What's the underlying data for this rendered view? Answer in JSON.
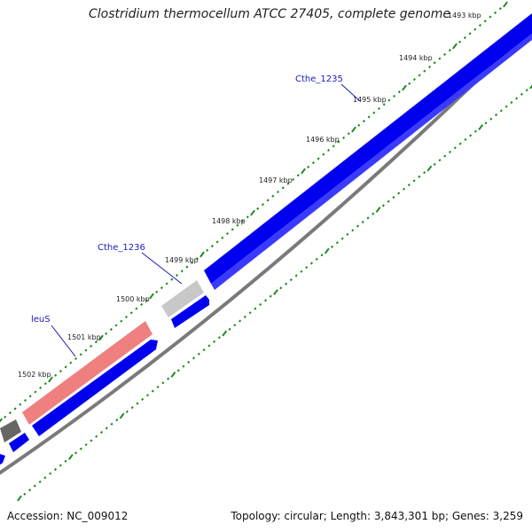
{
  "title": "Clostridium thermocellum ATCC 27405, complete genome",
  "accession_text": "Accession: NC_009012",
  "summary_text": "Topology: circular; Length: 3,843,301 bp; Genes: 3,259",
  "ticks": [
    "1493 kbp",
    "1494 kbp",
    "1495 kbp",
    "1496 kbp",
    "1497 kbp",
    "1498 kbp",
    "1499 kbp",
    "1500 kbp",
    "1501 kbp",
    "1502 kbp"
  ],
  "gene_labels": [
    {
      "name": "Cthe_1235"
    },
    {
      "name": "Cthe_1236"
    },
    {
      "name": "leuS"
    }
  ],
  "colors": {
    "cds_blue": "#0000ee",
    "leuS_highlight": "#f08080",
    "pseudo_gray": "#bbbbbb",
    "dark_gray": "#555555",
    "backbone": "#888888",
    "ticks": "#1a8a1a",
    "label_blue": "#1a1ab8"
  }
}
